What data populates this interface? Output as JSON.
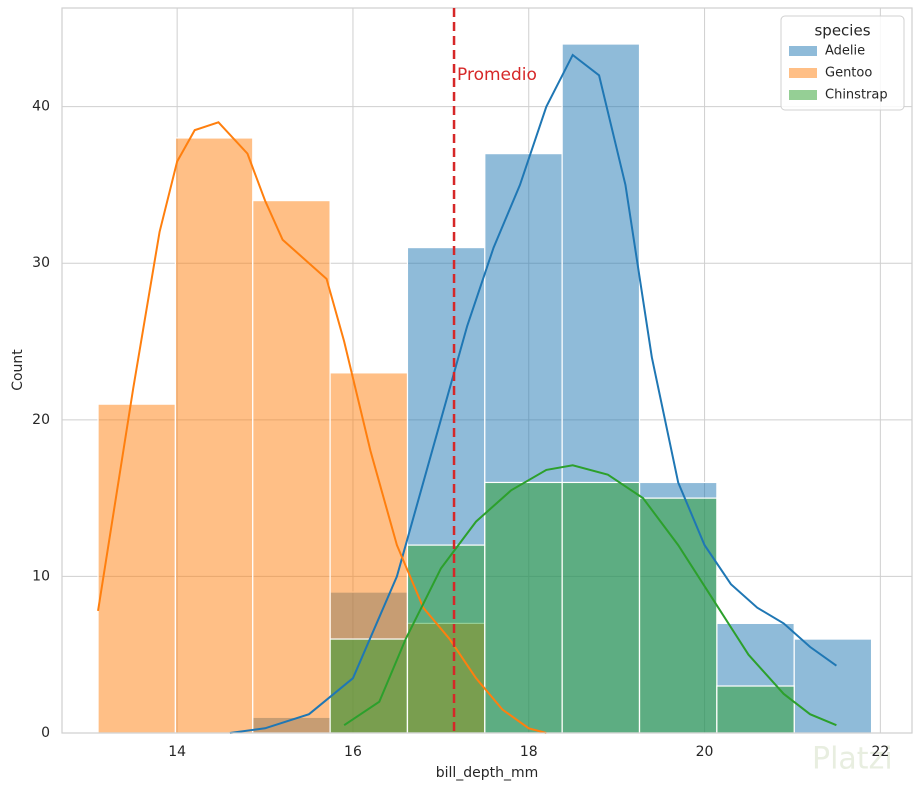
{
  "chart_data": {
    "type": "histogram",
    "x_label": "bill_depth_mm",
    "y_label": "Count",
    "xlim": [
      12.69,
      22.36
    ],
    "ylim": [
      0,
      46.3
    ],
    "xticks": [
      14,
      16,
      18,
      20,
      22
    ],
    "yticks": [
      0,
      10,
      20,
      30,
      40
    ],
    "grid": true,
    "bins": [
      13.1,
      13.98,
      14.86,
      15.74,
      16.62,
      17.5,
      18.38,
      19.26,
      20.14,
      21.02,
      21.9
    ],
    "series": [
      {
        "name": "Adelie",
        "color": "#1f77b4",
        "values": [
          0,
          0,
          1,
          9,
          31,
          37,
          44,
          16,
          7,
          6
        ],
        "kde_x": [
          14.6,
          15.0,
          15.5,
          16.0,
          16.5,
          17.0,
          17.3,
          17.6,
          17.9,
          18.2,
          18.5,
          18.8,
          19.1,
          19.4,
          19.7,
          20.0,
          20.3,
          20.6,
          20.9,
          21.2,
          21.5
        ],
        "kde_values": [
          0,
          0.3,
          1.2,
          3.5,
          10,
          20,
          26,
          31,
          35,
          40,
          43.3,
          42,
          35,
          24,
          16,
          12,
          9.5,
          8,
          7,
          5.5,
          4.3
        ]
      },
      {
        "name": "Gentoo",
        "color": "#ff7f0e",
        "values": [
          21,
          38,
          34,
          23,
          7,
          0,
          0,
          0,
          0,
          0
        ],
        "kde_x": [
          13.1,
          13.5,
          13.8,
          14.0,
          14.2,
          14.47,
          14.8,
          15.0,
          15.2,
          15.5,
          15.7,
          15.9,
          16.2,
          16.5,
          16.8,
          17.1,
          17.4,
          17.7,
          18.0,
          18.2
        ],
        "kde_values": [
          7.8,
          22,
          32,
          36.5,
          38.5,
          39,
          37,
          34,
          31.5,
          30,
          29,
          25,
          18,
          12,
          8,
          6,
          3.5,
          1.5,
          0.3,
          0
        ]
      },
      {
        "name": "Chinstrap",
        "color": "#2ca02c",
        "values": [
          0,
          0,
          0,
          6,
          12,
          16,
          16,
          15,
          3,
          0
        ],
        "kde_x": [
          15.9,
          16.3,
          16.6,
          17.0,
          17.4,
          17.8,
          18.2,
          18.5,
          18.9,
          19.3,
          19.7,
          20.1,
          20.5,
          20.9,
          21.2,
          21.5
        ],
        "kde_values": [
          0.5,
          2,
          6,
          10.5,
          13.5,
          15.5,
          16.8,
          17.1,
          16.5,
          15,
          12,
          8.5,
          5,
          2.5,
          1.2,
          0.5
        ]
      }
    ],
    "legend_title": "species",
    "legend_position": "upper right",
    "mean_line": {
      "x": 17.15,
      "label": "Promedio",
      "color": "#d62728"
    },
    "watermark": "Platzi"
  }
}
